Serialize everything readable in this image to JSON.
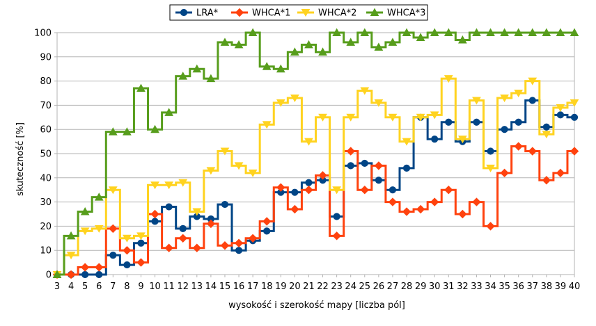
{
  "chart_data": {
    "type": "line",
    "step": true,
    "xlabel": "wysokość i szerokość mapy [liczba pól]",
    "ylabel": "skuteczność [%]",
    "xlim": [
      3,
      40
    ],
    "ylim": [
      0,
      100
    ],
    "yticks": [
      0,
      10,
      20,
      30,
      40,
      50,
      60,
      70,
      80,
      90,
      100
    ],
    "x": [
      3,
      4,
      5,
      6,
      7,
      8,
      9,
      10,
      11,
      12,
      13,
      14,
      15,
      16,
      17,
      18,
      19,
      20,
      21,
      22,
      23,
      24,
      25,
      26,
      27,
      28,
      29,
      30,
      31,
      32,
      33,
      34,
      35,
      36,
      37,
      38,
      39,
      40
    ],
    "grid": true,
    "legend_position": "top",
    "series": [
      {
        "name": "LRA*",
        "color": "#004586",
        "marker": "circle",
        "values": [
          0,
          0,
          0,
          0,
          8,
          4,
          13,
          22,
          28,
          19,
          24,
          23,
          29,
          10,
          14,
          18,
          34,
          34,
          38,
          39,
          24,
          45,
          46,
          39,
          35,
          44,
          65,
          56,
          63,
          55,
          63,
          51,
          60,
          63,
          72,
          61,
          66,
          65
        ]
      },
      {
        "name": "WHCA*1",
        "color": "#ff420e",
        "marker": "diamond",
        "values": [
          0,
          0,
          3,
          3,
          19,
          10,
          5,
          25,
          11,
          15,
          11,
          21,
          12,
          13,
          15,
          22,
          36,
          27,
          35,
          41,
          16,
          51,
          35,
          45,
          30,
          26,
          27,
          30,
          35,
          25,
          30,
          20,
          42,
          53,
          51,
          39,
          42,
          51
        ]
      },
      {
        "name": "WHCA*2",
        "color": "#ffd320",
        "marker": "triangle-down",
        "values": [
          0,
          8,
          18,
          19,
          35,
          15,
          16,
          37,
          37,
          38,
          26,
          43,
          51,
          45,
          42,
          62,
          71,
          73,
          55,
          65,
          35,
          65,
          76,
          71,
          65,
          55,
          65,
          66,
          81,
          56,
          72,
          44,
          73,
          75,
          80,
          58,
          69,
          71
        ]
      },
      {
        "name": "WHCA*3",
        "color": "#579d1c",
        "marker": "triangle-up",
        "values": [
          0,
          16,
          26,
          32,
          59,
          59,
          77,
          60,
          67,
          82,
          85,
          81,
          96,
          95,
          100,
          86,
          85,
          92,
          95,
          92,
          100,
          96,
          100,
          94,
          96,
          100,
          98,
          100,
          100,
          97,
          100,
          100,
          100,
          100,
          100,
          100,
          100,
          100
        ]
      }
    ]
  }
}
